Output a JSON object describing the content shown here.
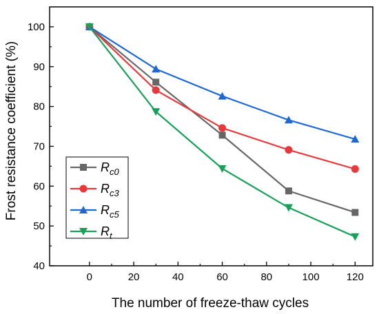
{
  "chart_data": {
    "type": "line",
    "xlabel": "The number of freeze-thaw cycles",
    "ylabel": "Frost resistance coefficient (%)",
    "xlim": [
      -18,
      128
    ],
    "ylim": [
      40,
      105
    ],
    "xticks": [
      0,
      20,
      40,
      60,
      80,
      100,
      120
    ],
    "yticks": [
      40,
      50,
      60,
      70,
      80,
      90,
      100
    ],
    "x": [
      0,
      30,
      60,
      90,
      120
    ],
    "grid": false,
    "legend_position": "bottom-left",
    "series": [
      {
        "name": "R",
        "sub": "c0",
        "color": "#666666",
        "marker": "square",
        "values": [
          100,
          86.1,
          72.8,
          58.8,
          53.4
        ]
      },
      {
        "name": "R",
        "sub": "c3",
        "color": "#e8383b",
        "marker": "circle",
        "values": [
          100,
          84.1,
          74.6,
          69.1,
          64.3
        ]
      },
      {
        "name": "R",
        "sub": "c5",
        "color": "#1e68d4",
        "marker": "triangle-up",
        "values": [
          100,
          89.4,
          82.6,
          76.6,
          71.8
        ]
      },
      {
        "name": "R",
        "sub": "t",
        "color": "#17a058",
        "marker": "triangle-down",
        "values": [
          100,
          78.7,
          64.4,
          54.6,
          47.3
        ]
      }
    ]
  }
}
